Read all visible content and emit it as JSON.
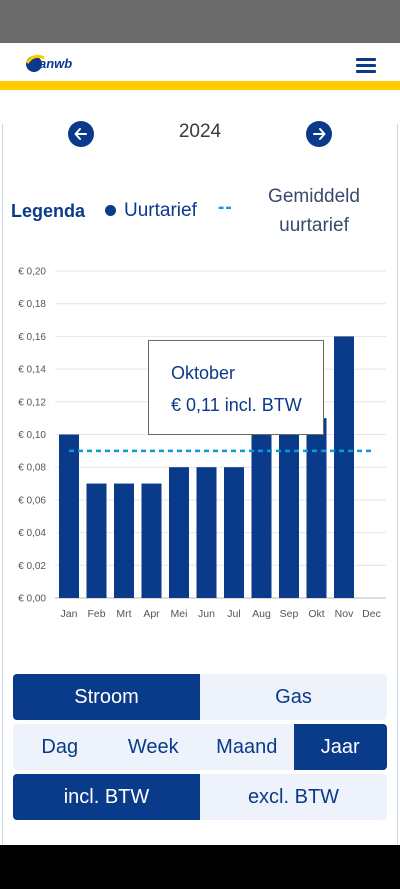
{
  "header": {
    "logo_text": "anwb",
    "menu_icon": "hamburger-menu-icon"
  },
  "colors": {
    "brand_blue": "#0a3a8a",
    "brand_yellow": "#ffcc00",
    "average_line": "#0a9ad8"
  },
  "navigation": {
    "year": "2024",
    "prev_icon": "arrow-left-icon",
    "next_icon": "arrow-right-icon"
  },
  "legend": {
    "title": "Legenda",
    "series_label": "Uurtarief",
    "dash_symbol": "--",
    "average_label": "Gemiddeld uurtarief"
  },
  "tooltip": {
    "month": "Oktober",
    "value": "€ 0,11 incl. BTW"
  },
  "chart_data": {
    "type": "bar",
    "categories": [
      "Jan",
      "Feb",
      "Mrt",
      "Apr",
      "Mei",
      "Jun",
      "Jul",
      "Aug",
      "Sep",
      "Okt",
      "Nov",
      "Dec"
    ],
    "values": [
      0.1,
      0.07,
      0.07,
      0.07,
      0.08,
      0.08,
      0.08,
      0.1,
      0.1,
      0.11,
      0.16,
      null
    ],
    "average": 0.09,
    "ylim": [
      0,
      0.2
    ],
    "yticks": [
      0.0,
      0.02,
      0.04,
      0.06,
      0.08,
      0.1,
      0.12,
      0.14,
      0.16,
      0.18,
      0.2
    ],
    "ytick_labels": [
      "€ 0,00",
      "€ 0,02",
      "€ 0,04",
      "€ 0,06",
      "€ 0,08",
      "€ 0,10",
      "€ 0,12",
      "€ 0,14",
      "€ 0,16",
      "€ 0,18",
      "€ 0,20"
    ],
    "grid": true,
    "title": "",
    "xlabel": "",
    "ylabel": ""
  },
  "energy_toggle": {
    "options": [
      "Stroom",
      "Gas"
    ],
    "selected": "Stroom"
  },
  "period_toggle": {
    "options": [
      "Dag",
      "Week",
      "Maand",
      "Jaar"
    ],
    "selected": "Jaar"
  },
  "vat_toggle": {
    "options": [
      "incl. BTW",
      "excl. BTW"
    ],
    "selected": "incl. BTW"
  }
}
